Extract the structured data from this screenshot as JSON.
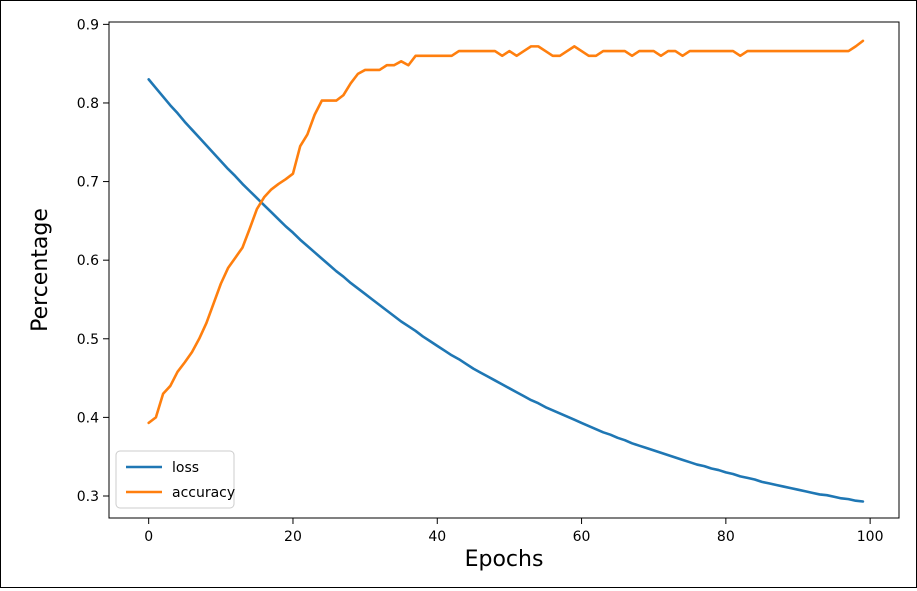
{
  "chart_data": {
    "type": "line",
    "xlabel": "Epochs",
    "ylabel": "Percentage",
    "xlim": [
      -5.5,
      104
    ],
    "ylim": [
      0.272,
      0.903
    ],
    "xticks": [
      0,
      20,
      40,
      60,
      80,
      100
    ],
    "yticks": [
      0.3,
      0.4,
      0.5,
      0.6,
      0.7,
      0.8,
      0.9
    ],
    "xtick_labels": [
      "0",
      "20",
      "40",
      "60",
      "80",
      "100"
    ],
    "ytick_labels": [
      "0.3",
      "0.4",
      "0.5",
      "0.6",
      "0.7",
      "0.8",
      "0.9"
    ],
    "grid": false,
    "legend": "bottom-left",
    "series": [
      {
        "name": "loss",
        "color": "#1f77b4",
        "x": [
          0,
          1,
          2,
          3,
          4,
          5,
          6,
          7,
          8,
          9,
          10,
          11,
          12,
          13,
          14,
          15,
          16,
          17,
          18,
          19,
          20,
          21,
          22,
          23,
          24,
          25,
          26,
          27,
          28,
          29,
          30,
          31,
          32,
          33,
          34,
          35,
          36,
          37,
          38,
          39,
          40,
          41,
          42,
          43,
          44,
          45,
          46,
          47,
          48,
          49,
          50,
          51,
          52,
          53,
          54,
          55,
          56,
          57,
          58,
          59,
          60,
          61,
          62,
          63,
          64,
          65,
          66,
          67,
          68,
          69,
          70,
          71,
          72,
          73,
          74,
          75,
          76,
          77,
          78,
          79,
          80,
          81,
          82,
          83,
          84,
          85,
          86,
          87,
          88,
          89,
          90,
          91,
          92,
          93,
          94,
          95,
          96,
          97,
          98,
          99
        ],
        "values": [
          0.83,
          0.819,
          0.808,
          0.797,
          0.787,
          0.776,
          0.766,
          0.756,
          0.746,
          0.736,
          0.726,
          0.716,
          0.707,
          0.697,
          0.688,
          0.679,
          0.67,
          0.661,
          0.652,
          0.643,
          0.635,
          0.626,
          0.618,
          0.61,
          0.602,
          0.594,
          0.586,
          0.579,
          0.571,
          0.564,
          0.557,
          0.55,
          0.543,
          0.536,
          0.529,
          0.522,
          0.516,
          0.51,
          0.503,
          0.497,
          0.491,
          0.485,
          0.479,
          0.474,
          0.468,
          0.462,
          0.457,
          0.452,
          0.447,
          0.442,
          0.437,
          0.432,
          0.427,
          0.422,
          0.418,
          0.413,
          0.409,
          0.405,
          0.401,
          0.397,
          0.393,
          0.389,
          0.385,
          0.381,
          0.378,
          0.374,
          0.371,
          0.367,
          0.364,
          0.361,
          0.358,
          0.355,
          0.352,
          0.349,
          0.346,
          0.343,
          0.34,
          0.338,
          0.335,
          0.333,
          0.33,
          0.328,
          0.325,
          0.323,
          0.321,
          0.318,
          0.316,
          0.314,
          0.312,
          0.31,
          0.308,
          0.306,
          0.304,
          0.302,
          0.301,
          0.299,
          0.297,
          0.296,
          0.294,
          0.293
        ]
      },
      {
        "name": "accuracy",
        "color": "#ff7f0e",
        "x": [
          0,
          1,
          2,
          3,
          4,
          5,
          6,
          7,
          8,
          9,
          10,
          11,
          12,
          13,
          14,
          15,
          16,
          17,
          18,
          19,
          20,
          21,
          22,
          23,
          24,
          25,
          26,
          27,
          28,
          29,
          30,
          31,
          32,
          33,
          34,
          35,
          36,
          37,
          38,
          39,
          40,
          41,
          42,
          43,
          44,
          45,
          46,
          47,
          48,
          49,
          50,
          51,
          52,
          53,
          54,
          55,
          56,
          57,
          58,
          59,
          60,
          61,
          62,
          63,
          64,
          65,
          66,
          67,
          68,
          69,
          70,
          71,
          72,
          73,
          74,
          75,
          76,
          77,
          78,
          79,
          80,
          81,
          82,
          83,
          84,
          85,
          86,
          87,
          88,
          89,
          90,
          91,
          92,
          93,
          94,
          95,
          96,
          97,
          98,
          99
        ],
        "values": [
          0.393,
          0.4,
          0.43,
          0.44,
          0.458,
          0.47,
          0.483,
          0.5,
          0.52,
          0.545,
          0.57,
          0.59,
          0.603,
          0.616,
          0.64,
          0.665,
          0.68,
          0.69,
          0.697,
          0.703,
          0.71,
          0.745,
          0.76,
          0.785,
          0.803,
          0.803,
          0.803,
          0.81,
          0.825,
          0.837,
          0.842,
          0.842,
          0.842,
          0.848,
          0.848,
          0.853,
          0.848,
          0.86,
          0.86,
          0.86,
          0.86,
          0.86,
          0.86,
          0.866,
          0.866,
          0.866,
          0.866,
          0.866,
          0.866,
          0.86,
          0.866,
          0.86,
          0.866,
          0.872,
          0.872,
          0.866,
          0.86,
          0.86,
          0.866,
          0.872,
          0.866,
          0.86,
          0.86,
          0.866,
          0.866,
          0.866,
          0.866,
          0.86,
          0.866,
          0.866,
          0.866,
          0.86,
          0.866,
          0.866,
          0.86,
          0.866,
          0.866,
          0.866,
          0.866,
          0.866,
          0.866,
          0.866,
          0.86,
          0.866,
          0.866,
          0.866,
          0.866,
          0.866,
          0.866,
          0.866,
          0.866,
          0.866,
          0.866,
          0.866,
          0.866,
          0.866,
          0.866,
          0.866,
          0.872,
          0.879
        ]
      }
    ]
  }
}
